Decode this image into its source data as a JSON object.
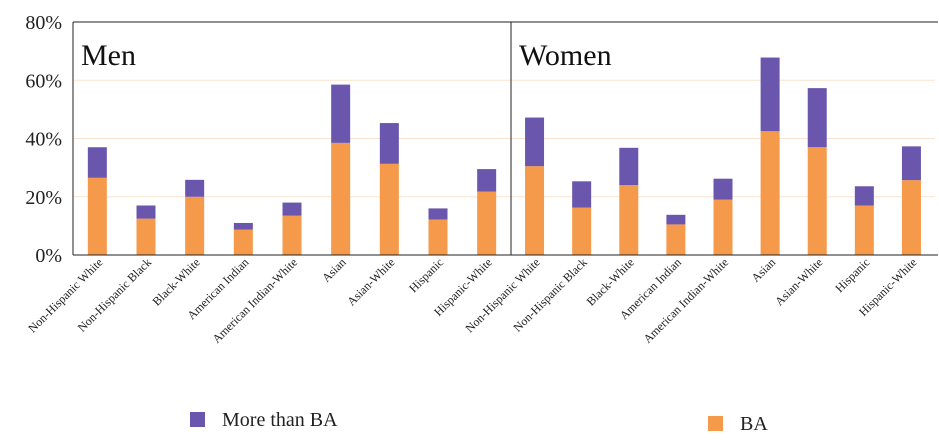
{
  "chart_data": {
    "type": "bar",
    "stacked": true,
    "ylim": [
      0,
      80
    ],
    "yticks": [
      "0%",
      "20%",
      "40%",
      "60%",
      "80%"
    ],
    "grid": true,
    "legend_position": "bottom",
    "panels": [
      {
        "title": "Men",
        "categories": [
          "Non-Hispanic White",
          "Non-Hispanic Black",
          "Black-White",
          "American Indian",
          "American Indian-White",
          "Asian",
          "Asian-White",
          "Hispanic",
          "Hispanic-White"
        ],
        "series": [
          {
            "name": "BA",
            "values": [
              26.5,
              12.5,
              20,
              8.7,
              13.5,
              38.5,
              31.3,
              12.2,
              21.8
            ]
          },
          {
            "name": "More than BA",
            "values": [
              10.5,
              4.5,
              5.8,
              2.3,
              4.5,
              20,
              14,
              3.8,
              7.7
            ]
          }
        ]
      },
      {
        "title": "Women",
        "categories": [
          "Non-Hispanic White",
          "Non-Hispanic Black",
          "Black-White",
          "American Indian",
          "American Indian-White",
          "Asian",
          "Asian-White",
          "Hispanic",
          "Hispanic-White"
        ],
        "series": [
          {
            "name": "BA",
            "values": [
              30.5,
              16.3,
              24,
              10.5,
              19,
              42.5,
              37,
              17,
              25.7
            ]
          },
          {
            "name": "More than BA",
            "values": [
              16.7,
              9,
              12.8,
              3.3,
              7.2,
              25.3,
              20.3,
              6.6,
              11.6
            ]
          }
        ]
      }
    ],
    "colors": {
      "BA": "#f5994a",
      "More than BA": "#6a57ad"
    },
    "legend": [
      {
        "name": "More than BA",
        "color": "#6a57ad"
      },
      {
        "name": "BA",
        "color": "#f5994a"
      }
    ]
  }
}
